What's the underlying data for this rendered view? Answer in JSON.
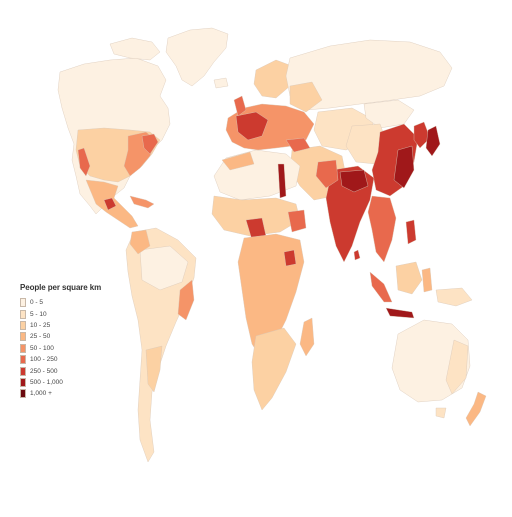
{
  "legend": {
    "title": "People per square km",
    "items": [
      {
        "label": "0 - 5",
        "color": "#fdf1e2"
      },
      {
        "label": "5 - 10",
        "color": "#fde3c4"
      },
      {
        "label": "10 - 25",
        "color": "#fcd1a3"
      },
      {
        "label": "25 - 50",
        "color": "#fbb884"
      },
      {
        "label": "50 - 100",
        "color": "#f59468"
      },
      {
        "label": "100 - 250",
        "color": "#e8694d"
      },
      {
        "label": "250 - 500",
        "color": "#cc3a2f"
      },
      {
        "label": "500 - 1,000",
        "color": "#a0181a"
      },
      {
        "label": "1,000 +",
        "color": "#6b0a0f"
      }
    ]
  },
  "map": {
    "ocean_color": "#ffffff",
    "border_color": "#d9c8b8"
  }
}
